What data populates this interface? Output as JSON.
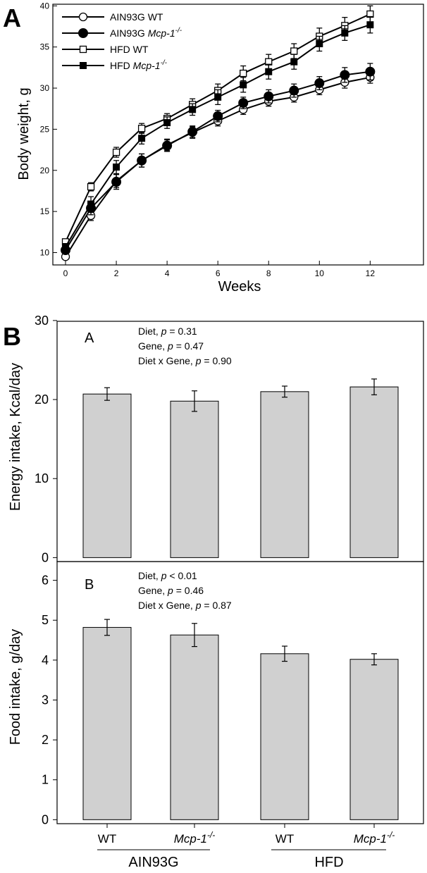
{
  "chart_data": [
    {
      "type": "line",
      "panel_label": "A",
      "xlabel": "Weeks",
      "ylabel": "Body weight, g",
      "xlim": [
        -0.5,
        14.1
      ],
      "ylim": [
        8.5,
        40.2
      ],
      "xticks": [
        0,
        2,
        4,
        6,
        8,
        10,
        12
      ],
      "yticks": [
        10,
        15,
        20,
        25,
        30,
        35,
        40
      ],
      "legend_position": "top-left",
      "legend": [
        {
          "prefix": "AIN93G",
          "suffix": "WT",
          "italic": false,
          "sup": ""
        },
        {
          "prefix": "AIN93G",
          "suffix": "Mcp-1",
          "italic": true,
          "sup": "-/-"
        },
        {
          "prefix": "HFD",
          "suffix": "WT",
          "italic": false,
          "sup": ""
        },
        {
          "prefix": "HFD",
          "suffix": "Mcp-1",
          "italic": true,
          "sup": "-/-"
        }
      ],
      "x": [
        0,
        1,
        2,
        3,
        4,
        5,
        6,
        7,
        8,
        9,
        10,
        11,
        12
      ],
      "series": [
        {
          "name": "AIN93G WT",
          "marker": "circle-open",
          "values": [
            9.5,
            14.5,
            18.7,
            21.2,
            23.1,
            24.6,
            26.0,
            27.4,
            28.4,
            28.9,
            29.8,
            30.7,
            31.3
          ],
          "errors": [
            0.3,
            0.6,
            0.8,
            0.8,
            0.7,
            0.7,
            0.6,
            0.6,
            0.6,
            0.6,
            0.6,
            0.7,
            0.7
          ]
        },
        {
          "name": "AIN93G Mcp-1-/-",
          "marker": "circle-filled",
          "values": [
            10.3,
            15.4,
            18.6,
            21.2,
            23.0,
            24.7,
            26.6,
            28.2,
            29.0,
            29.7,
            30.6,
            31.6,
            32.0
          ],
          "errors": [
            0.4,
            0.8,
            0.9,
            0.8,
            0.7,
            0.7,
            0.7,
            0.7,
            0.8,
            0.8,
            0.8,
            0.9,
            1.0
          ]
        },
        {
          "name": "HFD WT",
          "marker": "square-open",
          "values": [
            11.3,
            18.0,
            22.2,
            25.1,
            26.3,
            28.0,
            29.7,
            31.8,
            33.2,
            34.5,
            36.3,
            37.6,
            39.0
          ],
          "errors": [
            0.3,
            0.5,
            0.6,
            0.6,
            0.6,
            0.7,
            0.8,
            0.9,
            0.9,
            0.9,
            1.0,
            1.0,
            1.0
          ]
        },
        {
          "name": "HFD Mcp-1-/-",
          "marker": "square-filled",
          "values": [
            10.7,
            15.9,
            20.4,
            23.9,
            25.8,
            27.4,
            28.9,
            30.4,
            32.0,
            33.2,
            35.4,
            36.7,
            37.7
          ],
          "errors": [
            0.4,
            0.9,
            0.8,
            0.7,
            0.7,
            0.7,
            0.9,
            0.9,
            0.9,
            0.9,
            0.9,
            0.9,
            1.0
          ]
        }
      ]
    },
    {
      "type": "bar",
      "panel_label": "A",
      "ylabel": "Energy intake, Kcal/day",
      "ylim": [
        -0.5,
        29.9
      ],
      "yticks": [
        0,
        10,
        20,
        30
      ],
      "annotations": [
        {
          "label": "Diet,",
          "op": "=",
          "value": "0.31"
        },
        {
          "label": "Gene,",
          "op": "=",
          "value": "0.47"
        },
        {
          "label": "Diet x Gene,",
          "op": "=",
          "value": "0.90"
        }
      ],
      "values": [
        20.7,
        19.8,
        21.0,
        21.6
      ],
      "errors": [
        0.8,
        1.3,
        0.7,
        1.0
      ],
      "bar_color": "#d0d0d0"
    },
    {
      "type": "bar",
      "panel_label": "B",
      "ylabel": "Food intake, g/day",
      "ylim": [
        -0.1,
        6.47
      ],
      "yticks": [
        0,
        1,
        2,
        3,
        4,
        5,
        6
      ],
      "annotations": [
        {
          "label": "Diet,",
          "op": "<",
          "value": "0.01"
        },
        {
          "label": "Gene,",
          "op": "=",
          "value": "0.46"
        },
        {
          "label": "Diet x Gene,",
          "op": "=",
          "value": "0.87"
        }
      ],
      "values": [
        4.82,
        4.63,
        4.16,
        4.02
      ],
      "errors": [
        0.2,
        0.29,
        0.19,
        0.14
      ],
      "bar_color": "#d0d0d0"
    }
  ],
  "figure": {
    "label_A": "A",
    "label_B": "B",
    "p_symbol": "p",
    "categories": [
      {
        "text": "WT",
        "italic": false,
        "sup": ""
      },
      {
        "text": "Mcp-1",
        "italic": true,
        "sup": "-/-"
      },
      {
        "text": "WT",
        "italic": false,
        "sup": ""
      },
      {
        "text": "Mcp-1",
        "italic": true,
        "sup": "-/-"
      }
    ],
    "groups": [
      "AIN93G",
      "HFD"
    ]
  }
}
